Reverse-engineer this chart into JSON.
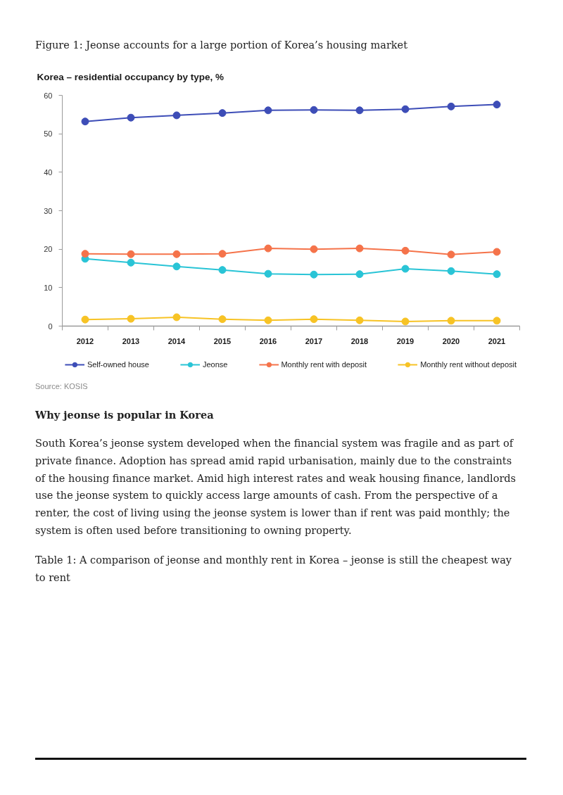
{
  "chart_data": {
    "type": "line",
    "title": "Korea – residential occupancy by type, %",
    "annotations": [
      "Figure 1: Jeonse accounts for a large portion of Korea’s housing market",
      "Source: KOSIS",
      "Why jeonse is popular in Korea",
      "South Korea’s jeonse system developed when the financial system was fragile and as part of private finance. Adoption has spread amid rapid urbanisation, mainly due to the constraints of the housing finance market. Amid high interest rates and weak housing finance, landlords use the jeonse system to quickly access large amounts of cash. From the perspective of a renter, the cost of living using the jeonse system is lower than if rent was paid monthly; the system is often used before transitioning to owning property.",
      "Table 1: A comparison of jeonse and monthly rent in Korea – jeonse is still the cheapest way to rent"
    ],
    "categories": [
      "2012",
      "2013",
      "2014",
      "2015",
      "2016",
      "2017",
      "2018",
      "2019",
      "2020",
      "2021"
    ],
    "series": [
      {
        "name": "Self-owned house",
        "color": "#3d4db7",
        "values": [
          53.2,
          54.2,
          54.8,
          55.4,
          56.1,
          56.2,
          56.1,
          56.4,
          57.1,
          57.6
        ]
      },
      {
        "name": "Jeonse",
        "color": "#29c4d6",
        "values": [
          17.5,
          16.5,
          15.5,
          14.6,
          13.6,
          13.4,
          13.5,
          14.9,
          14.3,
          13.5
        ]
      },
      {
        "name": "Monthly rent with deposit",
        "color": "#f5734a",
        "values": [
          18.8,
          18.7,
          18.7,
          18.8,
          20.2,
          20.0,
          20.2,
          19.6,
          18.6,
          19.3
        ]
      },
      {
        "name": "Monthly rent without deposit",
        "color": "#f7c325",
        "values": [
          1.7,
          1.9,
          2.3,
          1.8,
          1.5,
          1.8,
          1.5,
          1.2,
          1.4,
          1.4
        ]
      }
    ],
    "ylim": [
      0,
      60
    ],
    "yticks": [
      0,
      10,
      20,
      30,
      40,
      50,
      60
    ],
    "legend": "bottom",
    "marker": "circle",
    "line_style": "solid"
  }
}
